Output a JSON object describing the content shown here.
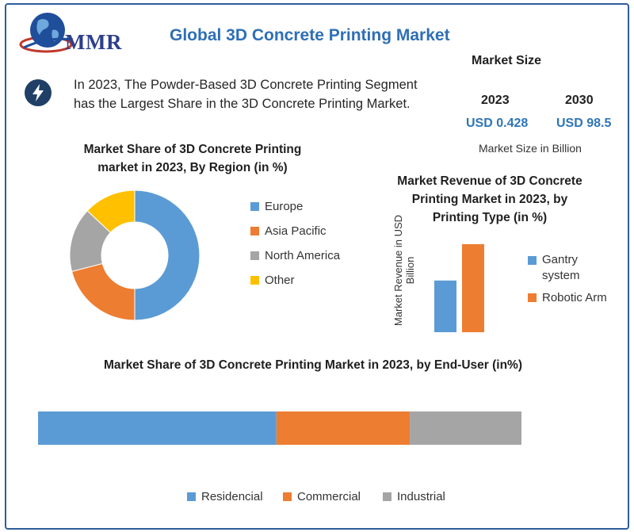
{
  "header": {
    "logo_text": "MMR",
    "title": "Global 3D Concrete Printing Market"
  },
  "highlight": {
    "icon": "lightning-icon",
    "line1": "In 2023, The Powder-Based 3D Concrete Printing Segment",
    "line2": "has the Largest Share in the 3D Concrete Printing Market."
  },
  "market_size": {
    "heading": "Market Size",
    "year_2023": "2023",
    "year_2030": "2030",
    "value_2023": "USD 0.428",
    "value_2030": "USD 98.5",
    "unit": "Market Size in Billion"
  },
  "colors": {
    "blue": "#5b9bd5",
    "orange": "#ed7d31",
    "gray": "#a5a5a5",
    "yellow": "#ffc000",
    "title_blue": "#2e6fb5"
  },
  "chart_data": [
    {
      "type": "donut",
      "title_line1": "Market Share of 3D Concrete Printing",
      "title_line2": "market in 2023, By Region (in %)",
      "categories": [
        "Europe",
        "Asia Pacific",
        "North America",
        "Other"
      ],
      "values": [
        50,
        21,
        16,
        13
      ],
      "colors": [
        "#5b9bd5",
        "#ed7d31",
        "#a5a5a5",
        "#ffc000"
      ],
      "legend_position": "right"
    },
    {
      "type": "bar",
      "title_line1": "Market Revenue of 3D Concrete",
      "title_line2": "Printing Market in 2023, by",
      "title_line3": "Printing Type (in %)",
      "ylabel": "Market Revenue in USD Billion",
      "categories": [
        "Gantry system",
        "Robotic Arm"
      ],
      "legend_gantry_line1": "Gantry",
      "legend_gantry_line2": "system",
      "values": [
        37,
        63
      ],
      "colors": [
        "#5b9bd5",
        "#ed7d31"
      ],
      "ylim": [
        0,
        63
      ],
      "legend_position": "right"
    },
    {
      "type": "stacked-bar",
      "title": "Market Share of 3D Concrete Printing Market in 2023, by End-User (in%)",
      "categories": [
        "Residencial",
        "Commercial",
        "Industrial"
      ],
      "values": [
        49.3,
        27.6,
        23.1
      ],
      "colors": [
        "#5b9bd5",
        "#ed7d31",
        "#a5a5a5"
      ],
      "legend_position": "bottom"
    }
  ]
}
